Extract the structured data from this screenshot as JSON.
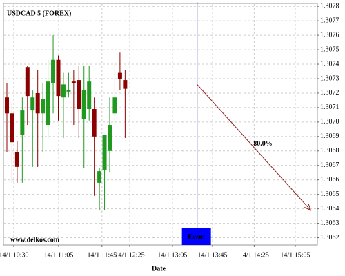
{
  "chart_data": {
    "type": "candlestick",
    "title": "USDCAD 5 (FOREX)",
    "x_label": "Date",
    "watermark": "www.delkos.com",
    "x": [
      0,
      1,
      2,
      3,
      4,
      5,
      6,
      7,
      8,
      9,
      10,
      11,
      12,
      13,
      14,
      15,
      16,
      17,
      18,
      19,
      20,
      21,
      22,
      23
    ],
    "candles": [
      {
        "open": 1.30717,
        "high": 1.30727,
        "low": 1.30679,
        "close": 1.30706
      },
      {
        "open": 1.30706,
        "high": 1.30713,
        "low": 1.30658,
        "close": 1.30686
      },
      {
        "open": 1.30679,
        "high": 1.30687,
        "low": 1.30658,
        "close": 1.30669
      },
      {
        "open": 1.30691,
        "high": 1.30717,
        "low": 1.30658,
        "close": 1.30708
      },
      {
        "open": 1.30738,
        "high": 1.30739,
        "low": 1.30698,
        "close": 1.30718
      },
      {
        "open": 1.30708,
        "high": 1.30722,
        "low": 1.30669,
        "close": 1.30717
      },
      {
        "open": 1.3072,
        "high": 1.30736,
        "low": 1.30669,
        "close": 1.30706
      },
      {
        "open": 1.30706,
        "high": 1.30727,
        "low": 1.30679,
        "close": 1.30716
      },
      {
        "open": 1.30698,
        "high": 1.30743,
        "low": 1.30689,
        "close": 1.30728
      },
      {
        "open": 1.30727,
        "high": 1.3076,
        "low": 1.30706,
        "close": 1.30743
      },
      {
        "open": 1.30743,
        "high": 1.30746,
        "low": 1.30701,
        "close": 1.30718
      },
      {
        "open": 1.30717,
        "high": 1.30734,
        "low": 1.30689,
        "close": 1.30726
      },
      {
        "open": 1.30721,
        "high": 1.30734,
        "low": 1.30717,
        "close": 1.30722
      },
      {
        "open": 1.30728,
        "high": 1.30736,
        "low": 1.30698,
        "close": 1.30727
      },
      {
        "open": 1.30729,
        "high": 1.30739,
        "low": 1.30689,
        "close": 1.30709
      },
      {
        "open": 1.30702,
        "high": 1.30739,
        "low": 1.30668,
        "close": 1.30722
      },
      {
        "open": 1.30709,
        "high": 1.30739,
        "low": 1.30701,
        "close": 1.30728
      },
      {
        "open": 1.30709,
        "high": 1.30717,
        "low": 1.30649,
        "close": 1.3069
      },
      {
        "open": 1.30658,
        "high": 1.30668,
        "low": 1.30639,
        "close": 1.30666
      },
      {
        "open": 1.30667,
        "high": 1.30691,
        "low": 1.30639,
        "close": 1.30691
      },
      {
        "open": 1.3068,
        "high": 1.30717,
        "low": 1.30665,
        "close": 1.30698
      },
      {
        "open": 1.30706,
        "high": 1.30741,
        "low": 1.30698,
        "close": 1.30717
      },
      {
        "open": 1.30734,
        "high": 1.30748,
        "low": 1.30722,
        "close": 1.3073
      },
      {
        "open": 1.30729,
        "high": 1.30736,
        "low": 1.30689,
        "close": 1.30723
      }
    ],
    "up_color": "#1f9a1f",
    "down_color": "#8b0000",
    "xlim": [
      -0.67,
      60.4
    ],
    "xticks": [
      {
        "value": 1.34,
        "label": "14/1 10:30"
      },
      {
        "value": 10.07,
        "label": "14/1 11:05"
      },
      {
        "value": 18.5,
        "label": "14/1 11:45"
      },
      {
        "value": 23.9,
        "label": "14/1 12:25"
      },
      {
        "value": 32.2,
        "label": "14/1 13:05"
      },
      {
        "value": 40,
        "label": "14/1 13:45"
      },
      {
        "value": 48.1,
        "label": "14/1 14:25"
      },
      {
        "value": 56.1,
        "label": "14/1 15:05"
      }
    ],
    "ylim": [
      1.30615,
      1.30782
    ],
    "yticks": [
      1.3062,
      1.3063,
      1.3064,
      1.3065,
      1.3066,
      1.3067,
      1.3068,
      1.3069,
      {
        "value": 1.307,
        "label": "1.3070"
      },
      1.3071,
      1.3072,
      1.3073,
      1.3074,
      1.3075,
      1.3076,
      1.3077,
      1.3078
    ],
    "grid": true,
    "event": {
      "x": 37,
      "label": "Event",
      "color": "#0000ff"
    },
    "arrow": {
      "x": [
        37,
        59.1
      ],
      "y": [
        1.30726,
        1.30639
      ],
      "label": "80.0%",
      "color": "#8b1a1a"
    }
  }
}
